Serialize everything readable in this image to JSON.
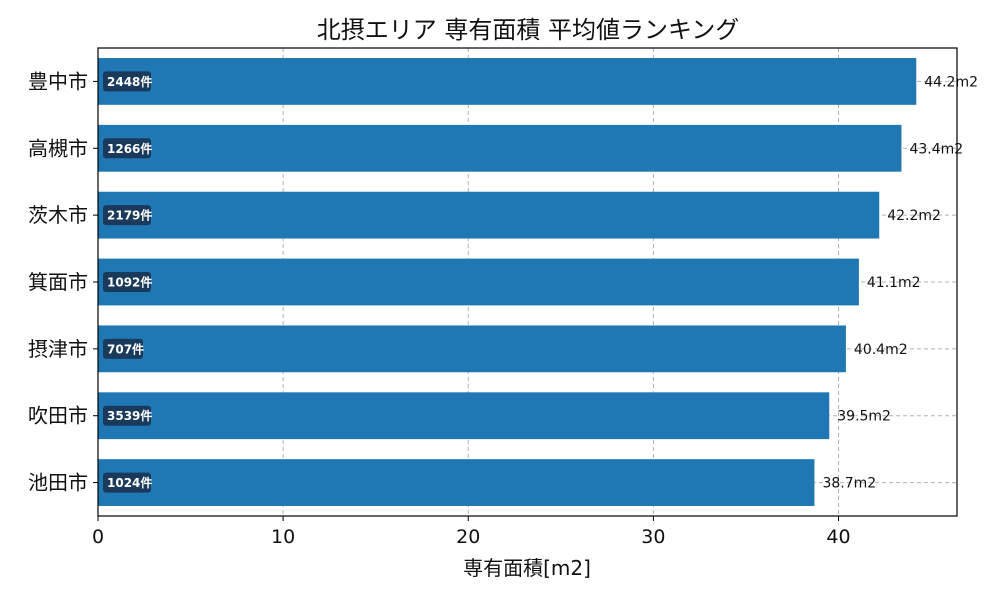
{
  "chart_data": {
    "type": "bar",
    "orientation": "horizontal",
    "title": "北摂エリア 専有面積 平均値ランキング",
    "xlabel": "専有面積[m2]",
    "ylabel": "",
    "categories": [
      "豊中市",
      "高槻市",
      "茨木市",
      "箕面市",
      "摂津市",
      "吹田市",
      "池田市"
    ],
    "values": [
      44.2,
      43.4,
      42.2,
      41.1,
      40.4,
      39.5,
      38.7
    ],
    "value_labels": [
      "44.2m2",
      "43.4m2",
      "42.2m2",
      "41.1m2",
      "40.4m2",
      "39.5m2",
      "38.7m2"
    ],
    "count_labels": [
      "2448件",
      "1266件",
      "2179件",
      "1092件",
      "707件",
      "3539件",
      "1024件"
    ],
    "xlim": [
      0,
      46.4
    ],
    "xticks": [
      0,
      10,
      20,
      30,
      40
    ],
    "xtick_labels": [
      "0",
      "10",
      "20",
      "30",
      "40"
    ],
    "grid": true,
    "bar_color": "#1f77b4",
    "badge_color": "#1a3a5c"
  }
}
